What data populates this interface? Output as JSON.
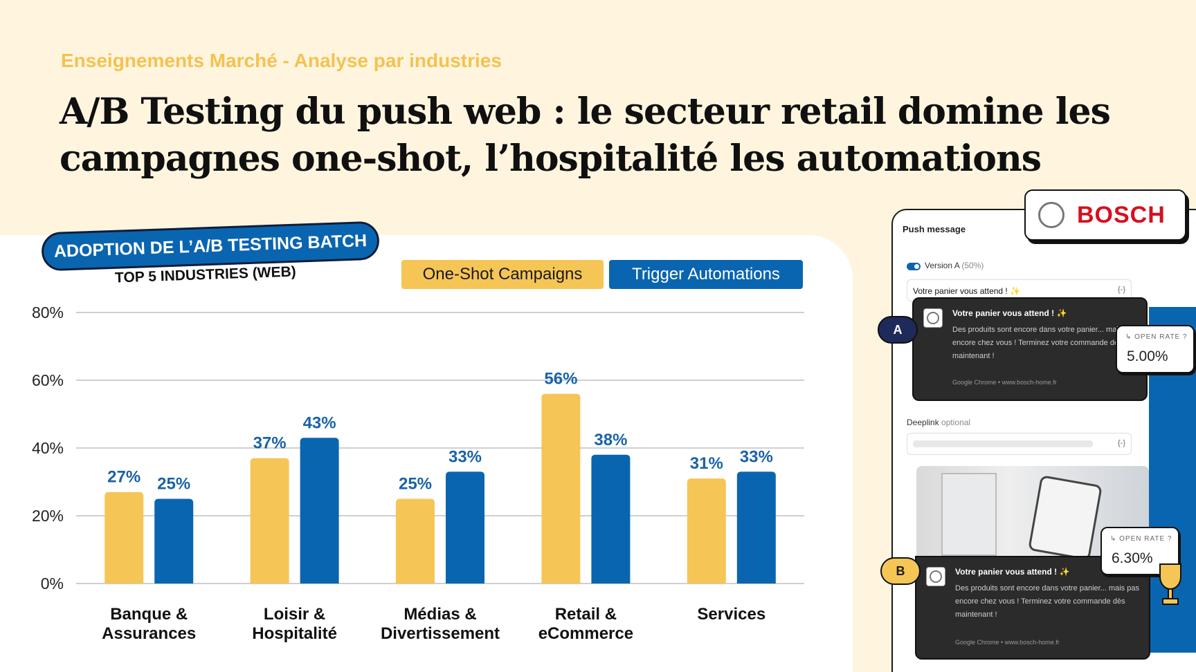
{
  "eyebrow": "Enseignements Marché - Analyse par industries",
  "headline_line1": "A/B Testing du push web : le secteur retail domine les",
  "headline_line2": "campagnes one-shot, l’hospitalité les automations",
  "pill_title": "ADOPTION DE L’A/B TESTING BATCH",
  "pill_sub": "TOP 5 INDUSTRIES (WEB)",
  "colors": {
    "one_shot": "#f5c556",
    "trigger": "#0a65b0",
    "label": "#1a62a8"
  },
  "chart_data": {
    "type": "bar",
    "title": "ADOPTION DE L’A/B TESTING BATCH",
    "subtitle": "TOP 5 INDUSTRIES (WEB)",
    "categories": [
      [
        "Banque &",
        "Assurances"
      ],
      [
        "Loisir &",
        "Hospitalité"
      ],
      [
        "Médias &",
        "Divertissement"
      ],
      [
        "Retail &",
        "eCommerce"
      ],
      [
        "Services"
      ]
    ],
    "series": [
      {
        "name": "One-Shot Campaigns",
        "values": [
          27,
          37,
          25,
          56,
          31
        ]
      },
      {
        "name": "Trigger Automations",
        "values": [
          25,
          43,
          33,
          38,
          33
        ]
      }
    ],
    "ylim": [
      0,
      80
    ],
    "yticks": [
      0,
      20,
      40,
      60,
      80
    ],
    "ytick_labels": [
      "0%",
      "20%",
      "40%",
      "60%",
      "80%"
    ],
    "value_suffix": "%",
    "grid": true,
    "legend": "top-right"
  },
  "mockup": {
    "panel_title": "Push message",
    "version_a": "Version A",
    "version_a_pct": "(50%)",
    "field_title": "Votre panier vous attend ! ✨",
    "brace": "{-}",
    "deeplink_label": "Deeplink",
    "deeplink_optional": "optional",
    "brand": "BOSCH",
    "badge_a": "A",
    "badge_b": "B",
    "notif_title": "Votre panier vous attend ! ✨",
    "notif_body": "Des produits sont encore dans votre panier... mais pas encore chez vous ! Terminez votre commande dès maintenant !",
    "notif_footer": "Google Chrome • www.bosch-home.fr",
    "open_rate_label": "↳ OPEN RATE ?",
    "open_rate_a": "5.00%",
    "open_rate_b": "6.30%"
  }
}
